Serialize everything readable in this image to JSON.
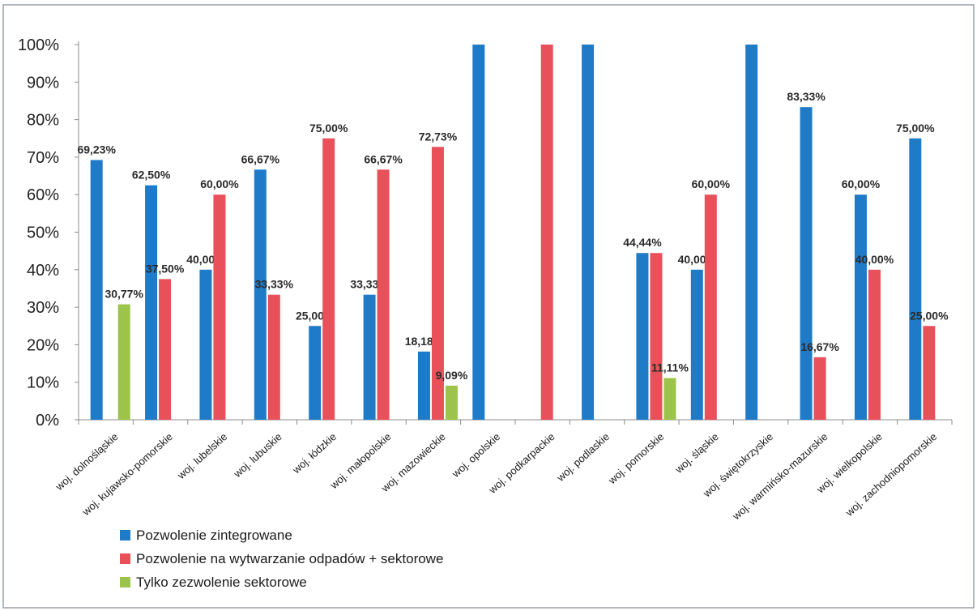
{
  "chart_data": {
    "type": "bar",
    "title": "",
    "xlabel": "",
    "ylabel": "",
    "ylim": [
      0,
      100
    ],
    "yticks": [
      "0%",
      "10%",
      "20%",
      "30%",
      "40%",
      "50%",
      "60%",
      "70%",
      "80%",
      "90%",
      "100%"
    ],
    "grid": false,
    "legend_position": "bottom-left",
    "categories": [
      "woj. dolnośląskie",
      "woj. kujawsko-pomorskie",
      "woj. lubelskie",
      "woj. lubuskie",
      "woj. łódzkie",
      "woj. małopolskie",
      "woj. mazowieckie",
      "woj. opolskie",
      "woj. podkarpackie",
      "woj. podlaskie",
      "woj. pomorskie",
      "woj. śląskie",
      "woj. świętokrzyskie",
      "woj. warmińsko-mazurskie",
      "woj. wielkopolskie",
      "woj. zachodniopomorskie"
    ],
    "series": [
      {
        "name": "Pozwolenie zintegrowane",
        "color": "#1f7bc8",
        "values": [
          69.23,
          62.5,
          40.0,
          66.67,
          25.0,
          33.33,
          18.18,
          100,
          0,
          100,
          44.44,
          40.0,
          100,
          83.33,
          60.0,
          75.0
        ],
        "labels": [
          "69,23%",
          "62,50%",
          "40,00%",
          "66,67%",
          "25,00%",
          "33,33%",
          "18,18%",
          "",
          "",
          "",
          "44,44%",
          "40,00%",
          "",
          "83,33%",
          "60,00%",
          "75,00%"
        ]
      },
      {
        "name": "Pozwolenie na wytwarzanie odpadów + sektorowe",
        "color": "#e8505a",
        "values": [
          0,
          37.5,
          60.0,
          33.33,
          75.0,
          66.67,
          72.73,
          0,
          100,
          0,
          44.44,
          60.0,
          0,
          16.67,
          40.0,
          25.0
        ],
        "labels": [
          "",
          "37,50%",
          "60,00%",
          "33,33%",
          "75,00%",
          "66,67%",
          "72,73%",
          "",
          "",
          "",
          "",
          "60,00%",
          "",
          "16,67%",
          "40,00%",
          "25,00%"
        ]
      },
      {
        "name": "Tylko zezwolenie sektorowe",
        "color": "#9cc44a",
        "values": [
          30.77,
          0,
          0,
          0,
          0,
          0,
          9.09,
          0,
          0,
          0,
          11.11,
          0,
          0,
          0,
          0,
          0
        ],
        "labels": [
          "30,77%",
          "",
          "",
          "",
          "",
          "",
          "9,09%",
          "",
          "",
          "",
          "11,11%",
          "",
          "",
          "",
          "",
          ""
        ]
      }
    ]
  }
}
